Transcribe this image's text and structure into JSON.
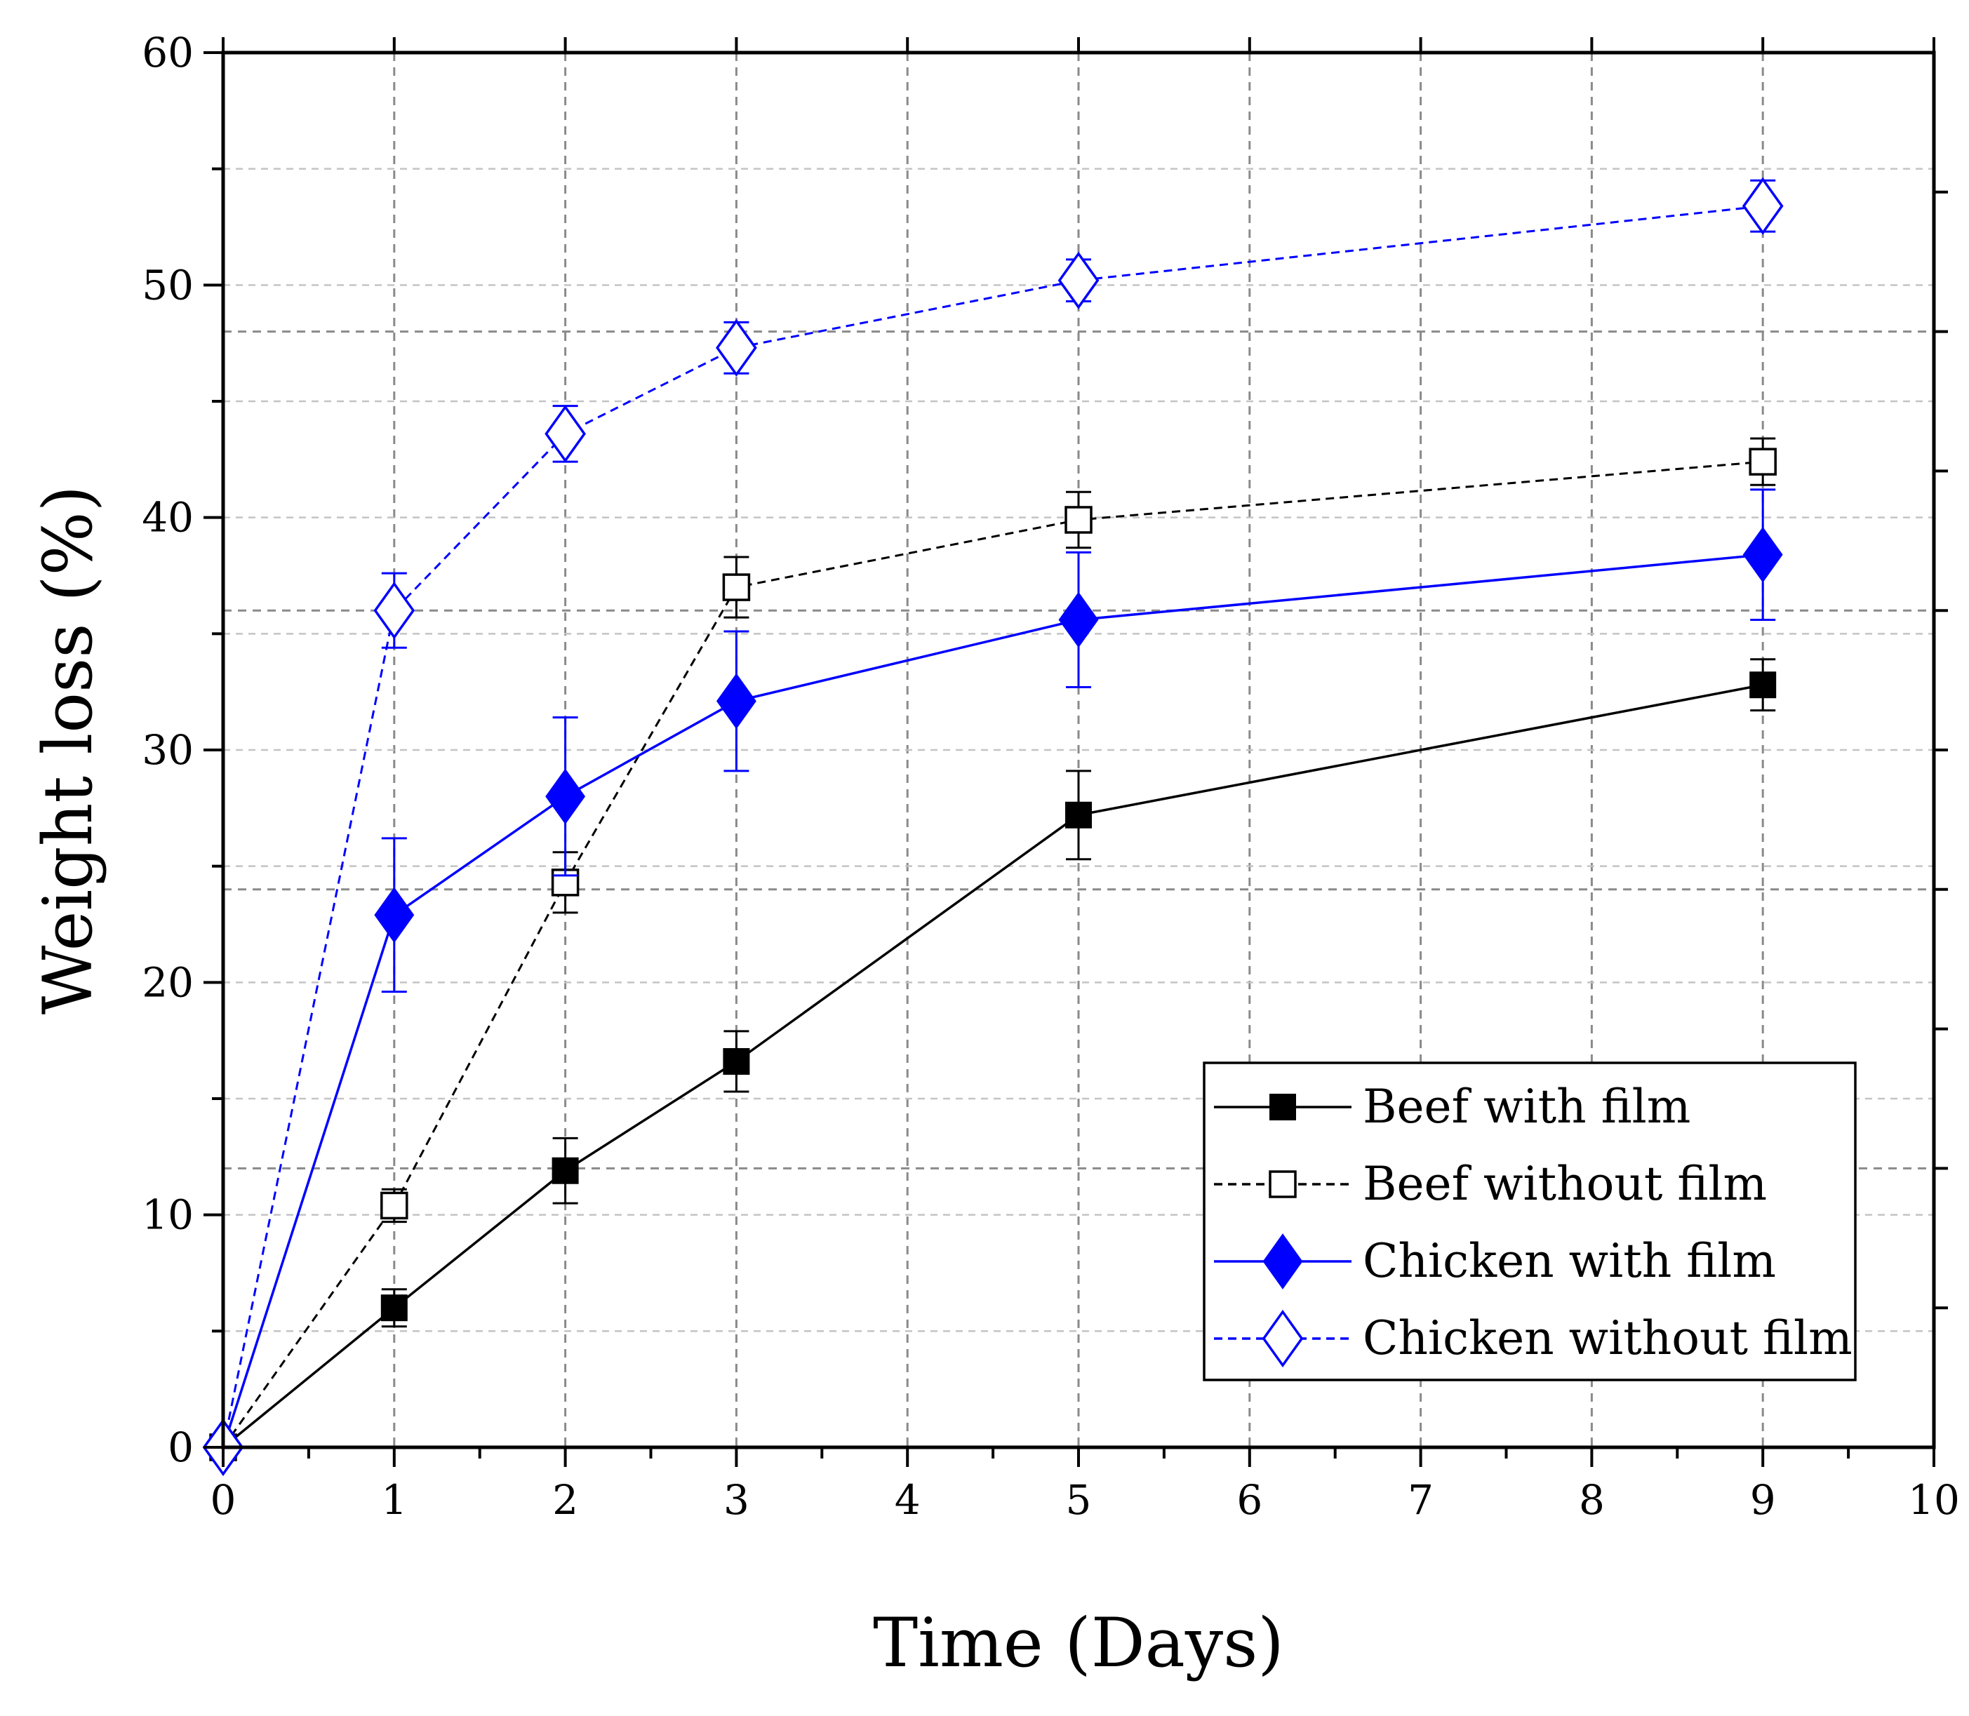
{
  "chart_data": {
    "type": "line",
    "title": "",
    "xlabel": "Time (Days)",
    "ylabel": "Weight loss (%)",
    "xlim": [
      0,
      10
    ],
    "ylim": [
      0,
      60
    ],
    "xticks": [
      "0",
      "1",
      "2",
      "3",
      "4",
      "5",
      "6",
      "7",
      "8",
      "9",
      "10"
    ],
    "yticks": [
      "0",
      "10",
      "20",
      "30",
      "40",
      "50",
      "60"
    ],
    "grid": true,
    "legend_position": "lower-right",
    "series": [
      {
        "name": "Beef with film",
        "color": "#000000",
        "line_style": "solid",
        "marker": "filled-square",
        "x": [
          0,
          1,
          2,
          3,
          5,
          9
        ],
        "y": [
          0,
          6.0,
          11.9,
          16.6,
          27.2,
          32.8
        ],
        "error": [
          0,
          0.8,
          1.4,
          1.3,
          1.9,
          1.1
        ]
      },
      {
        "name": "Beef without film",
        "color": "#000000",
        "line_style": "dashed",
        "marker": "open-square",
        "x": [
          0,
          1,
          2,
          3,
          5,
          9
        ],
        "y": [
          0,
          10.4,
          24.3,
          37.0,
          39.9,
          42.4
        ],
        "error": [
          0,
          0.7,
          1.3,
          1.3,
          1.2,
          1.0
        ]
      },
      {
        "name": "Chicken with film",
        "color": "#0000ff",
        "line_style": "solid",
        "marker": "filled-diamond",
        "x": [
          0,
          1,
          2,
          3,
          5,
          9
        ],
        "y": [
          0,
          22.9,
          28.0,
          32.1,
          35.6,
          38.4
        ],
        "error": [
          0,
          3.3,
          3.4,
          3.0,
          2.9,
          2.8
        ]
      },
      {
        "name": "Chicken without film",
        "color": "#0000ff",
        "line_style": "dashed",
        "marker": "open-diamond",
        "x": [
          0,
          1,
          2,
          3,
          5,
          9
        ],
        "y": [
          0,
          36.0,
          43.6,
          47.3,
          50.2,
          53.4
        ],
        "error": [
          0,
          1.6,
          1.2,
          1.1,
          0.9,
          1.1
        ]
      }
    ]
  }
}
